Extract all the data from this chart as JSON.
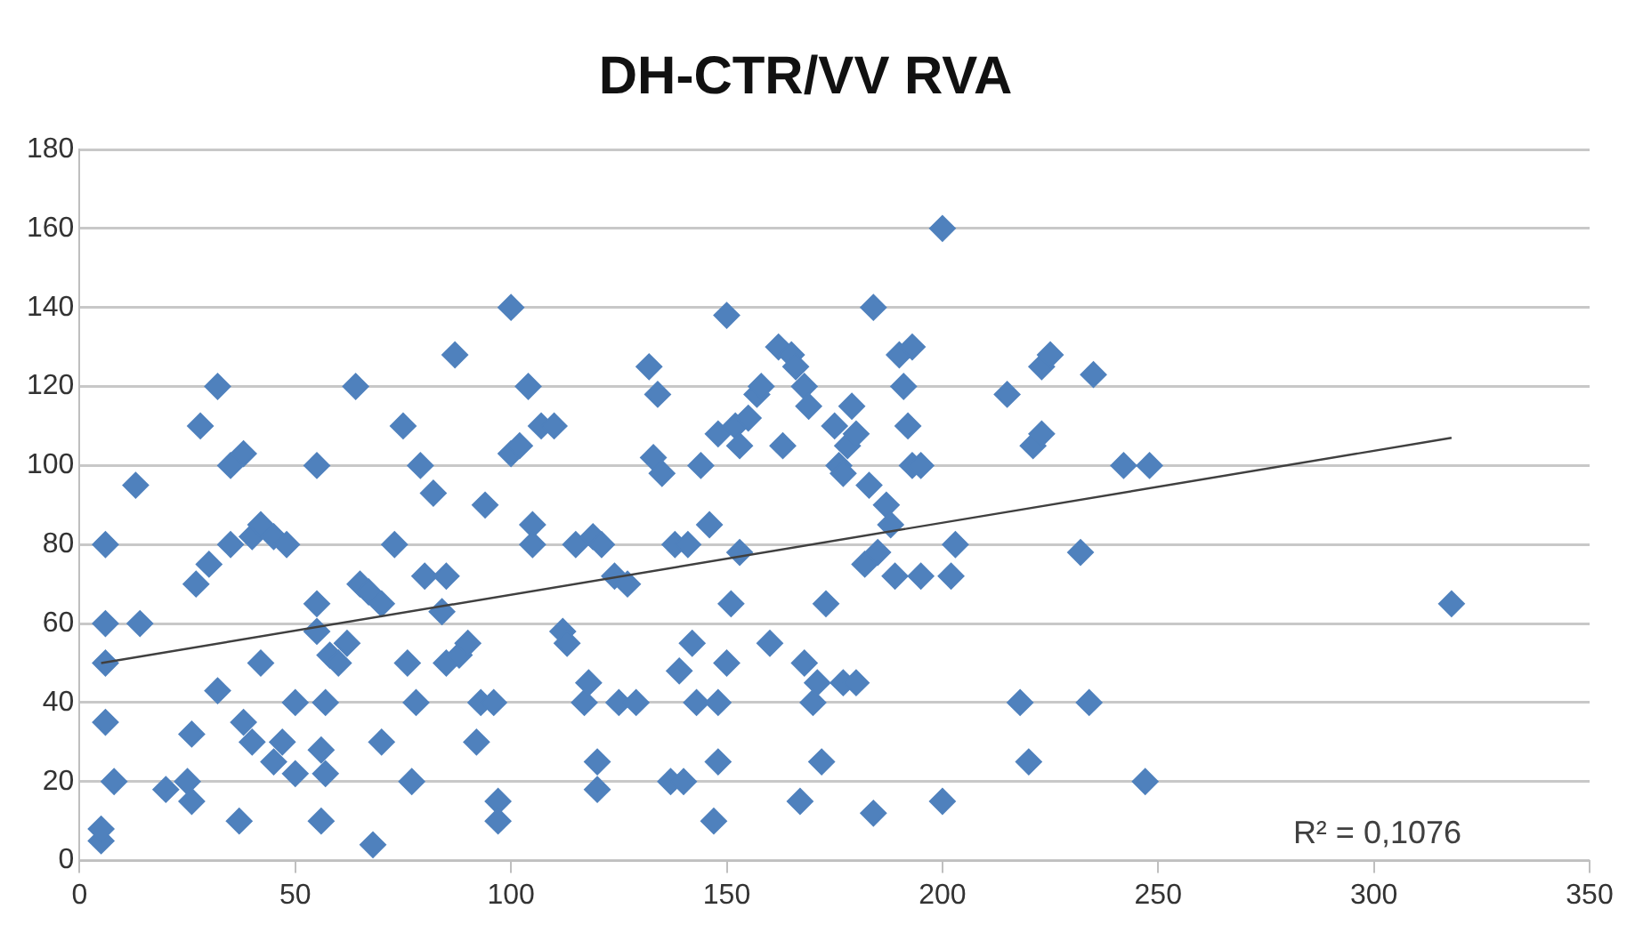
{
  "chart_data": {
    "type": "scatter",
    "title": "DH-CTR/VV RVA",
    "marker": "diamond",
    "grid": "y",
    "legend": false,
    "xlim": [
      0,
      350
    ],
    "xticks": [
      0,
      50,
      100,
      150,
      200,
      250,
      300,
      350
    ],
    "ylim": [
      0,
      180
    ],
    "yticks": [
      0,
      20,
      40,
      60,
      80,
      100,
      120,
      140,
      160,
      180
    ],
    "annotations": [
      "R² = 0,1076"
    ],
    "series": [
      {
        "color": "#4f81bd",
        "x": [
          5,
          5,
          6,
          6,
          6,
          6,
          8,
          13,
          14,
          20,
          25,
          26,
          26,
          27,
          28,
          30,
          32,
          32,
          35,
          35,
          37,
          38,
          38,
          40,
          40,
          42,
          42,
          45,
          45,
          47,
          48,
          50,
          50,
          55,
          55,
          55,
          56,
          56,
          57,
          57,
          58,
          60,
          62,
          64,
          65,
          67,
          68,
          70,
          70,
          73,
          75,
          76,
          77,
          78,
          79,
          80,
          82,
          84,
          85,
          85,
          87,
          88,
          90,
          92,
          93,
          94,
          96,
          97,
          97,
          100,
          100,
          102,
          104,
          105,
          105,
          107,
          110,
          112,
          113,
          115,
          117,
          118,
          119,
          120,
          120,
          121,
          124,
          125,
          127,
          129,
          132,
          133,
          134,
          135,
          137,
          138,
          139,
          140,
          141,
          142,
          143,
          144,
          146,
          147,
          148,
          148,
          148,
          150,
          150,
          151,
          152,
          153,
          153,
          155,
          157,
          158,
          160,
          162,
          163,
          165,
          166,
          167,
          168,
          168,
          169,
          170,
          171,
          172,
          173,
          175,
          176,
          177,
          177,
          178,
          179,
          180,
          180,
          182,
          183,
          184,
          184,
          185,
          187,
          188,
          189,
          190,
          191,
          192,
          193,
          193,
          195,
          195,
          200,
          200,
          202,
          203,
          215,
          218,
          220,
          221,
          223,
          223,
          225,
          232,
          234,
          235,
          242,
          247,
          248,
          318
        ],
        "values": [
          5,
          8,
          35,
          50,
          60,
          80,
          20,
          95,
          60,
          18,
          20,
          32,
          15,
          70,
          110,
          75,
          120,
          43,
          80,
          100,
          10,
          103,
          35,
          82,
          30,
          85,
          50,
          82,
          25,
          30,
          80,
          40,
          22,
          100,
          65,
          58,
          28,
          10,
          22,
          40,
          52,
          50,
          55,
          120,
          70,
          68,
          4,
          65,
          30,
          80,
          110,
          50,
          20,
          40,
          100,
          72,
          93,
          63,
          72,
          50,
          128,
          52,
          55,
          30,
          40,
          90,
          40,
          15,
          10,
          103,
          140,
          105,
          120,
          85,
          80,
          110,
          110,
          58,
          55,
          80,
          40,
          45,
          82,
          25,
          18,
          80,
          72,
          40,
          70,
          40,
          125,
          102,
          118,
          98,
          20,
          80,
          48,
          20,
          80,
          55,
          40,
          100,
          85,
          10,
          25,
          108,
          40,
          138,
          50,
          65,
          110,
          105,
          78,
          112,
          118,
          120,
          55,
          130,
          105,
          128,
          125,
          15,
          50,
          120,
          115,
          40,
          45,
          25,
          65,
          110,
          100,
          45,
          98,
          105,
          115,
          45,
          108,
          75,
          95,
          140,
          12,
          78,
          90,
          85,
          72,
          128,
          120,
          110,
          100,
          130,
          72,
          100,
          15,
          160,
          72,
          80,
          118,
          40,
          25,
          105,
          125,
          108,
          128,
          78,
          40,
          123,
          100,
          20,
          100,
          65
        ]
      },
      {
        "type": "line",
        "color": "#404040",
        "marker": "none",
        "x": [
          5,
          318
        ],
        "values": [
          50,
          107
        ]
      }
    ]
  }
}
